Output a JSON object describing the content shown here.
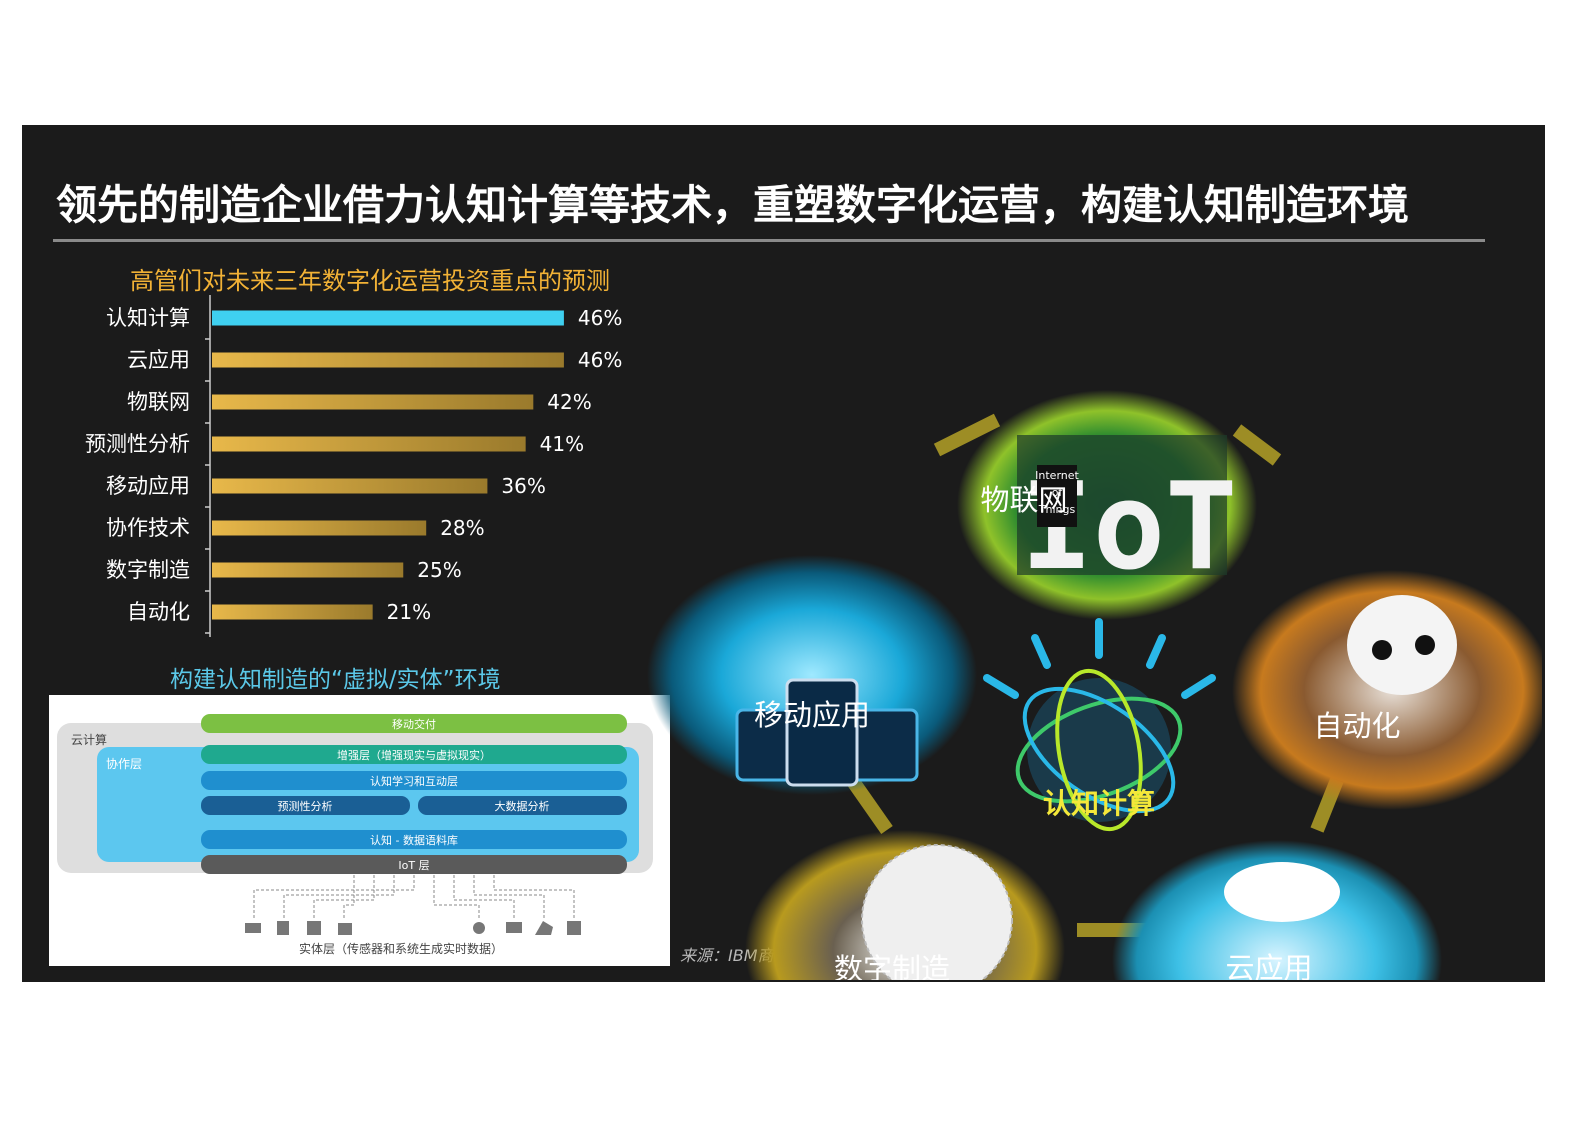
{
  "page": {
    "title": "领先的制造企业借力认知计算等技术，重塑数字化运营，构建认知制造环境",
    "source": "来源：IBM商业价值研究院"
  },
  "chart_data": {
    "type": "bar",
    "orientation": "horizontal",
    "title": "高管们对未来三年数字化运营投资重点的预测",
    "categories": [
      "认知计算",
      "云应用",
      "物联网",
      "预测性分析",
      "移动应用",
      "协作技术",
      "数字制造",
      "自动化"
    ],
    "values": [
      46,
      46,
      42,
      41,
      36,
      28,
      25,
      21
    ],
    "value_labels": [
      "46%",
      "46%",
      "42%",
      "41%",
      "36%",
      "28%",
      "25%",
      "21%"
    ],
    "unit": "%",
    "highlight_index": 0,
    "colors": {
      "highlight": "#3fd0f0",
      "bar": "#e8b84a",
      "bar_end": "#9a7a2c"
    },
    "xlim": [
      0,
      50
    ],
    "grid": false,
    "legend": "none"
  },
  "diagram": {
    "title": "构建认知制造的“虚拟/实体”环境",
    "cloud_label": "云计算",
    "collab_label": "协作层",
    "layers": {
      "mobile": "移动交付",
      "ar": "增强层（增强现实与虚拟现实）",
      "cognitive": "认知学习和互动层",
      "predictive": "预测性分析",
      "bigdata": "大数据分析",
      "datalib": "认知 - 数据语料库",
      "iot": "IoT 层"
    },
    "physical_label": "实体层（传感器和系统生成实时数据）",
    "colors": {
      "green": "#7cc043",
      "teal": "#1fa98f",
      "blue": "#1f8fcf",
      "darkblue": "#1a5f95",
      "gray": "#5a5a5a",
      "cloud": "#dedede",
      "collab": "#5cc7ef"
    }
  },
  "visual": {
    "center_label": "认知计算",
    "iot_text": "IoT",
    "iot_sub": [
      "Internet",
      "of",
      "Things"
    ],
    "bubbles": {
      "iot": "物联网",
      "mobile": "移动应用",
      "automation": "自动化",
      "digital": "数字制造",
      "cloud": "云应用"
    }
  }
}
